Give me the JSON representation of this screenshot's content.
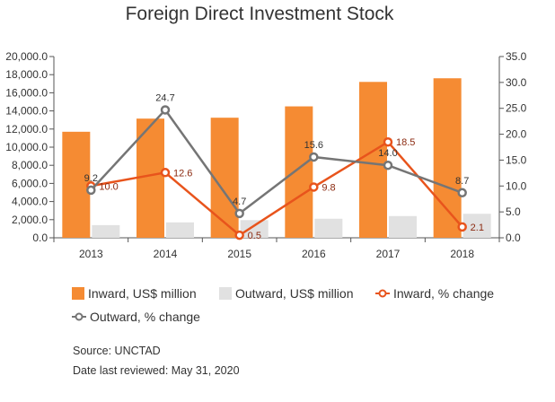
{
  "chart_data": {
    "type": "bar",
    "title": "Foreign Direct Investment Stock",
    "categories": [
      "2013",
      "2014",
      "2015",
      "2016",
      "2017",
      "2018"
    ],
    "y_left": {
      "min": 0,
      "max": 20000,
      "ticks": [
        "0.0",
        "2,000.0",
        "4,000.0",
        "6,000.0",
        "8,000.0",
        "10,000.0",
        "12,000.0",
        "14,000.0",
        "16,000.0",
        "18,000.0",
        "20,000.0"
      ]
    },
    "y_right": {
      "min": 0,
      "max": 35,
      "ticks": [
        "0.0",
        "5.0",
        "10.0",
        "15.0",
        "20.0",
        "25.0",
        "30.0",
        "35.0"
      ]
    },
    "bar_series": [
      {
        "name": "Inward, US$ million",
        "color": "#f58b33",
        "values": [
          11700,
          13150,
          13250,
          14500,
          17200,
          17600
        ]
      },
      {
        "name": "Outward, US$ million",
        "color": "#e1e1e1",
        "values": [
          1400,
          1700,
          1950,
          2100,
          2400,
          2650
        ]
      }
    ],
    "line_series": [
      {
        "name": "Inward, % change",
        "color": "#e8541c",
        "values": [
          10.0,
          12.6,
          0.5,
          9.8,
          18.5,
          2.1
        ],
        "labels": [
          "10.0",
          "12.6",
          "0.5",
          "9.8",
          "18.5",
          "2.1"
        ]
      },
      {
        "name": "Outward, % change",
        "color": "#757575",
        "values": [
          9.2,
          24.7,
          4.7,
          15.6,
          14.0,
          8.7
        ],
        "labels": [
          "9.2",
          "24.7",
          "4.7",
          "15.6",
          "14.0",
          "8.7"
        ]
      }
    ],
    "legend_position": "bottom",
    "grid": false
  },
  "footer": {
    "source": "Source: UNCTAD",
    "reviewed": "Date last reviewed: May 31, 2020"
  }
}
